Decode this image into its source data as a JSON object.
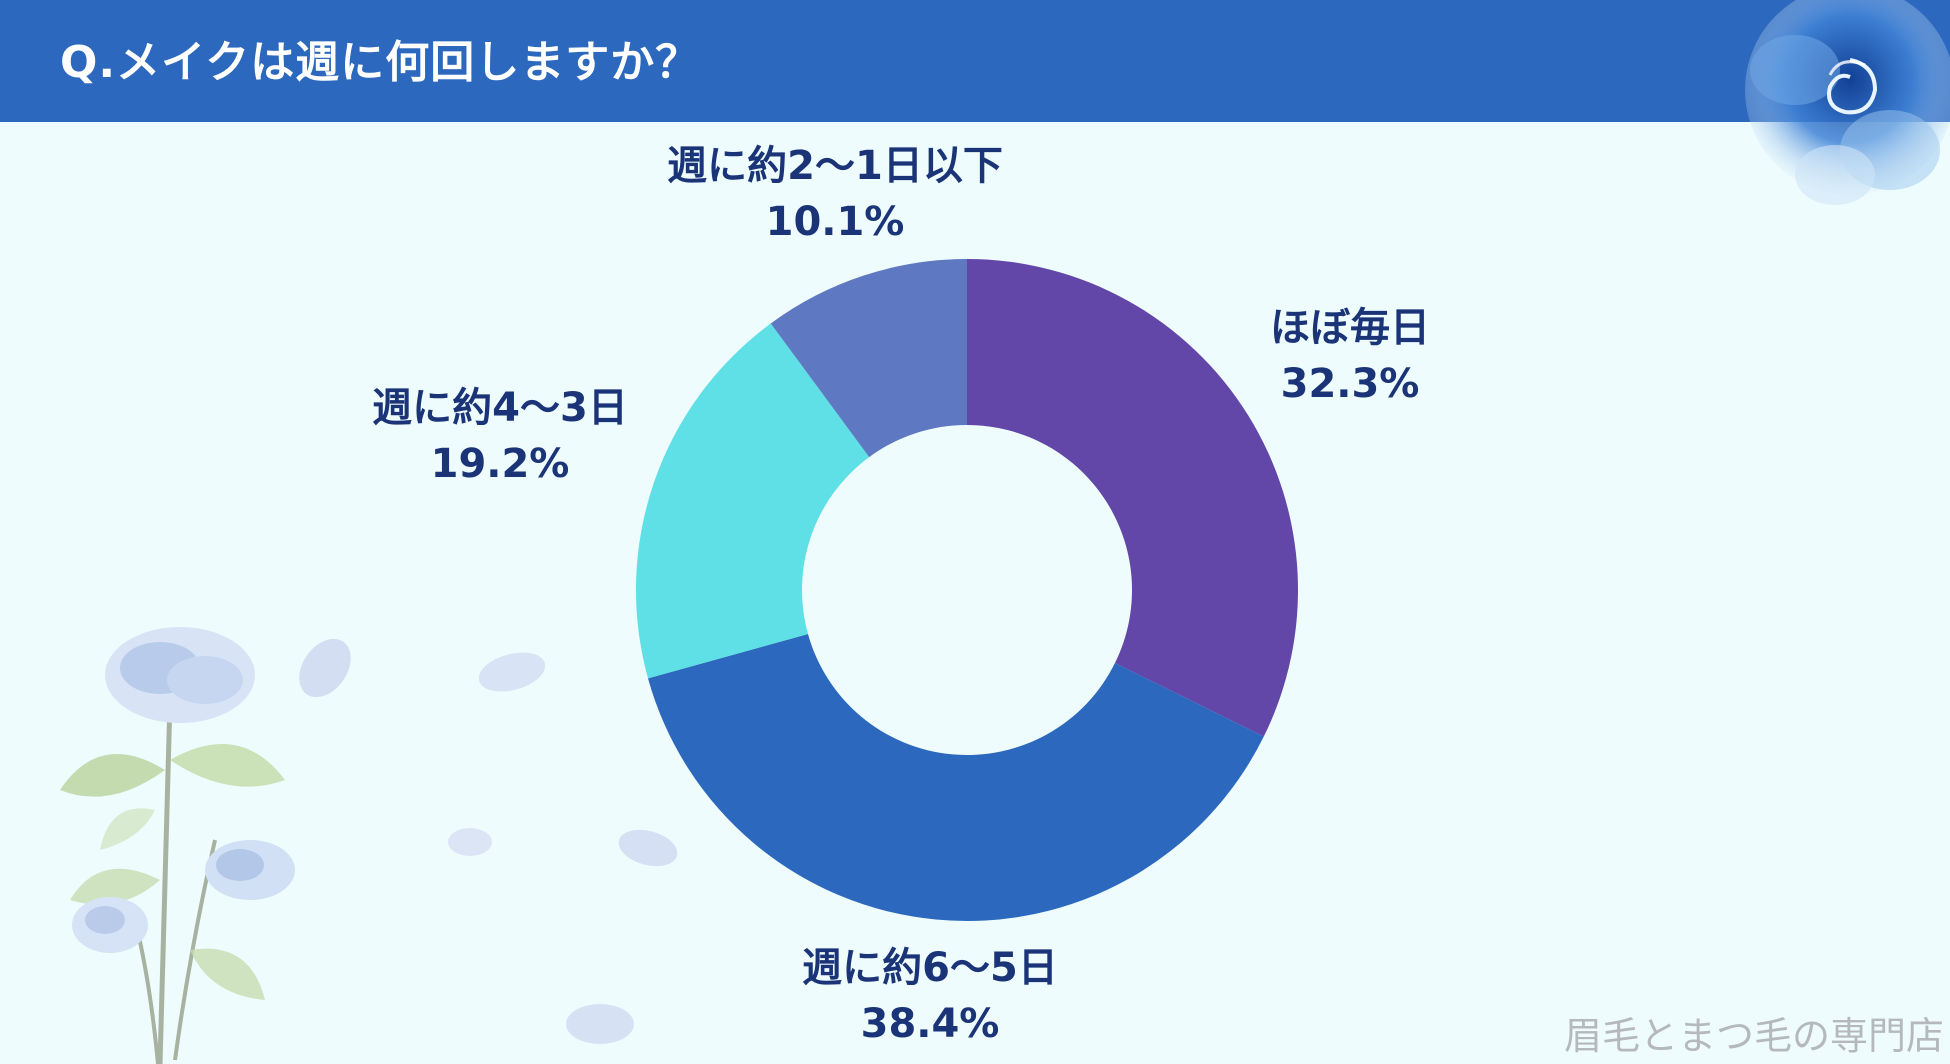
{
  "header": {
    "title": "Q.メイクは週に何回しますか？"
  },
  "chart_data": {
    "type": "pie",
    "donut": true,
    "title": "Q.メイクは週に何回しますか？",
    "categories": [
      "ほぼ毎日",
      "週に約6～5日",
      "週に約4～3日",
      "週に約2～1日以下"
    ],
    "values": [
      32.3,
      38.4,
      19.2,
      10.1
    ],
    "value_labels": [
      "32.3%",
      "38.4%",
      "19.2%",
      "10.1%"
    ],
    "colors": [
      "#6347a8",
      "#2c68bd",
      "#5ee0e6",
      "#5f78c2"
    ],
    "legend": "none"
  },
  "footer": {
    "text": "眉毛とまつ毛の専門店"
  }
}
